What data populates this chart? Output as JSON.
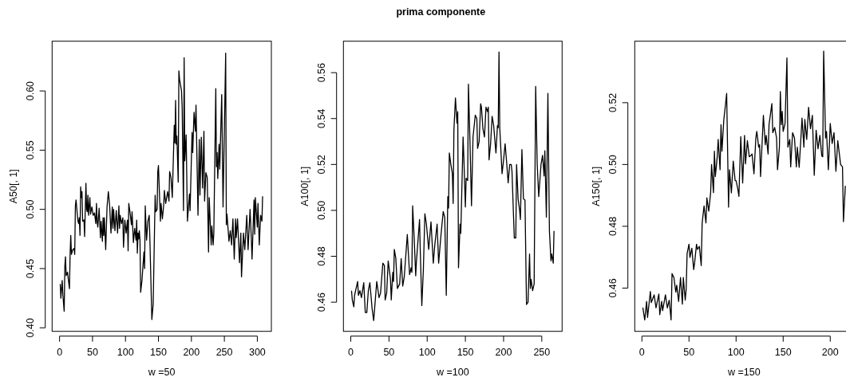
{
  "chart_data": [
    {
      "type": "line",
      "xlabel": "w =50",
      "ylabel": "A50[, 1]",
      "xlim": [
        -11.3,
        321.3
      ],
      "ylim": [
        0.397,
        0.642
      ],
      "xticks": [
        0,
        50,
        100,
        150,
        200,
        250,
        300
      ],
      "yticks": [
        {
          "value": 0.4,
          "label": "0.40"
        },
        0.45,
        {
          "value": 0.5,
          "label": "0.50"
        },
        0.55,
        {
          "value": 0.6,
          "label": "0.60"
        }
      ],
      "series": [
        {
          "color": "#000000",
          "x": [
            1,
            2,
            4,
            5,
            7,
            8,
            9,
            10,
            12,
            15,
            16,
            17,
            18,
            20,
            22,
            23,
            24,
            25,
            27,
            28,
            29,
            30,
            31,
            32,
            33,
            34,
            35,
            37,
            38,
            40,
            41,
            42,
            43,
            44,
            46,
            47,
            49,
            51,
            53,
            55,
            56,
            57,
            58,
            60,
            62,
            63,
            65,
            66,
            67,
            68,
            70,
            72,
            74,
            76,
            78,
            80,
            81,
            82,
            84,
            86,
            88,
            90,
            91,
            92,
            94,
            96,
            97,
            99,
            101,
            103,
            104,
            105,
            107,
            109,
            110,
            112,
            114,
            116,
            117,
            118,
            119,
            120,
            121,
            122,
            123,
            125,
            128,
            129,
            130,
            132,
            134,
            136,
            137,
            140,
            142,
            145,
            146,
            148,
            149,
            150,
            153,
            154,
            156,
            158,
            159,
            161,
            164,
            166,
            167,
            169,
            171,
            174,
            175,
            176,
            177,
            178,
            180,
            181,
            182,
            185,
            186,
            188,
            189,
            190,
            192,
            194,
            197,
            198,
            201,
            202,
            204,
            206,
            207,
            210,
            212,
            213,
            215,
            217,
            219,
            220,
            222,
            224,
            226,
            227,
            230,
            231,
            233,
            234,
            237,
            238,
            239,
            240,
            242,
            243,
            246,
            248,
            252,
            253,
            254,
            257,
            259,
            261,
            263,
            265,
            267,
            268,
            270,
            273,
            275,
            276,
            279,
            281,
            284,
            286,
            289,
            291,
            292,
            295,
            296,
            297,
            300,
            301,
            303,
            305,
            307,
            308
          ],
          "values": [
            0.437,
            0.425,
            0.44,
            0.428,
            0.414,
            0.452,
            0.46,
            0.444,
            0.447,
            0.433,
            0.462,
            0.478,
            0.462,
            0.466,
            0.467,
            0.462,
            0.503,
            0.508,
            0.495,
            0.49,
            0.488,
            0.493,
            0.478,
            0.519,
            0.51,
            0.515,
            0.49,
            0.491,
            0.477,
            0.522,
            0.5,
            0.498,
            0.512,
            0.495,
            0.51,
            0.496,
            0.502,
            0.495,
            0.497,
            0.488,
            0.505,
            0.49,
            0.485,
            0.501,
            0.476,
            0.49,
            0.473,
            0.493,
            0.478,
            0.493,
            0.466,
            0.502,
            0.515,
            0.503,
            0.48,
            0.502,
            0.484,
            0.5,
            0.482,
            0.499,
            0.48,
            0.503,
            0.484,
            0.495,
            0.488,
            0.493,
            0.468,
            0.491,
            0.48,
            0.491,
            0.465,
            0.505,
            0.497,
            0.487,
            0.498,
            0.472,
            0.484,
            0.474,
            0.491,
            0.463,
            0.48,
            0.475,
            0.482,
            0.474,
            0.43,
            0.44,
            0.464,
            0.45,
            0.503,
            0.474,
            0.49,
            0.495,
            0.475,
            0.407,
            0.42,
            0.512,
            0.498,
            0.5,
            0.532,
            0.537,
            0.49,
            0.505,
            0.492,
            0.504,
            0.516,
            0.505,
            0.515,
            0.507,
            0.532,
            0.527,
            0.51,
            0.571,
            0.556,
            0.592,
            0.555,
            0.562,
            0.523,
            0.617,
            0.61,
            0.6,
            0.586,
            0.499,
            0.628,
            0.541,
            0.563,
            0.49,
            0.513,
            0.499,
            0.565,
            0.548,
            0.582,
            0.566,
            0.588,
            0.495,
            0.559,
            0.512,
            0.561,
            0.518,
            0.566,
            0.507,
            0.531,
            0.527,
            0.464,
            0.51,
            0.47,
            0.486,
            0.47,
            0.48,
            0.602,
            0.536,
            0.548,
            0.526,
            0.555,
            0.534,
            0.597,
            0.502,
            0.632,
            0.487,
            0.496,
            0.473,
            0.482,
            0.47,
            0.492,
            0.458,
            0.492,
            0.476,
            0.492,
            0.455,
            0.48,
            0.443,
            0.48,
            0.466,
            0.495,
            0.466,
            0.5,
            0.474,
            0.458,
            0.508,
            0.479,
            0.51,
            0.485,
            0.505,
            0.47,
            0.495,
            0.49,
            0.511
          ]
        }
      ]
    },
    {
      "type": "line",
      "title": "prima componente",
      "xlabel": "w =100",
      "ylabel": "A100[, 1]",
      "xlim": [
        -9.6,
        276.6
      ],
      "ylim": [
        0.4473,
        0.5737
      ],
      "xticks": [
        0,
        50,
        100,
        150,
        200,
        250
      ],
      "yticks": [
        0.46,
        0.48,
        {
          "value": 0.5,
          "label": "0.50"
        },
        0.52,
        0.54,
        0.56
      ],
      "series": [
        {
          "color": "#000000",
          "x": [
            1,
            2,
            4,
            5,
            9,
            10,
            12,
            14,
            17,
            19,
            21,
            23,
            25,
            28,
            30,
            34,
            37,
            39,
            42,
            44,
            45,
            47,
            49,
            52,
            53,
            55,
            56,
            57,
            59,
            61,
            64,
            66,
            68,
            70,
            74,
            77,
            79,
            80,
            81,
            83,
            85,
            86,
            90,
            91,
            93,
            95,
            97,
            99,
            102,
            105,
            108,
            110,
            113,
            115,
            118,
            121,
            123,
            125,
            127,
            128,
            129,
            131,
            133,
            134,
            135,
            137,
            139,
            140,
            141,
            143,
            144,
            147,
            148,
            150,
            151,
            153,
            154,
            156,
            158,
            160,
            163,
            165,
            166,
            168,
            170,
            171,
            173,
            175,
            177,
            179,
            180,
            181,
            183,
            185,
            187,
            190,
            192,
            193,
            194,
            195,
            198,
            200,
            202,
            204,
            206,
            208,
            210,
            211,
            214,
            216,
            217,
            219,
            221,
            222,
            224,
            226,
            228,
            230,
            232,
            234,
            235,
            236,
            238,
            240,
            242,
            244,
            246,
            249,
            251,
            253,
            254,
            256,
            258,
            260,
            262,
            263,
            265,
            266
          ],
          "values": [
            0.465,
            0.461,
            0.458,
            0.463,
            0.469,
            0.463,
            0.465,
            0.462,
            0.4685,
            0.4555,
            0.4555,
            0.465,
            0.4685,
            0.457,
            0.452,
            0.469,
            0.462,
            0.464,
            0.477,
            0.476,
            0.461,
            0.464,
            0.478,
            0.47,
            0.461,
            0.473,
            0.469,
            0.483,
            0.479,
            0.466,
            0.468,
            0.479,
            0.467,
            0.471,
            0.4895,
            0.472,
            0.475,
            0.473,
            0.502,
            0.488,
            0.4715,
            0.478,
            0.496,
            0.482,
            0.4585,
            0.474,
            0.4985,
            0.494,
            0.483,
            0.495,
            0.477,
            0.485,
            0.494,
            0.477,
            0.489,
            0.4995,
            0.497,
            0.463,
            0.506,
            0.501,
            0.525,
            0.52,
            0.516,
            0.503,
            0.535,
            0.549,
            0.538,
            0.543,
            0.475,
            0.494,
            0.49,
            0.532,
            0.523,
            0.5015,
            0.514,
            0.513,
            0.555,
            0.53,
            0.502,
            0.532,
            0.5415,
            0.54,
            0.527,
            0.53,
            0.5465,
            0.545,
            0.5355,
            0.532,
            0.545,
            0.543,
            0.545,
            0.522,
            0.529,
            0.541,
            0.537,
            0.525,
            0.537,
            0.536,
            0.569,
            0.536,
            0.516,
            0.522,
            0.529,
            0.521,
            0.512,
            0.52,
            0.52,
            0.517,
            0.488,
            0.488,
            0.52,
            0.505,
            0.5,
            0.496,
            0.5265,
            0.505,
            0.5045,
            0.459,
            0.46,
            0.481,
            0.466,
            0.47,
            0.465,
            0.468,
            0.554,
            0.52,
            0.506,
            0.52,
            0.524,
            0.515,
            0.526,
            0.497,
            0.551,
            0.491,
            0.478,
            0.481,
            0.477,
            0.491
          ]
        }
      ]
    },
    {
      "type": "line",
      "xlabel": "w =150",
      "ylabel": "A150[, 1]",
      "xlim": [
        -7.6,
        224.6
      ],
      "ylim": [
        0.446,
        0.5399
      ],
      "xticks": [
        0,
        50,
        100,
        150,
        200
      ],
      "yticks": [
        0.46,
        0.48,
        {
          "value": 0.5,
          "label": "0.50"
        },
        0.52
      ],
      "series": [
        {
          "color": "#000000",
          "x": [
            1,
            3,
            5,
            6,
            9,
            10,
            13,
            15,
            18,
            19,
            21,
            22,
            25,
            27,
            29,
            31,
            32,
            34,
            36,
            37,
            39,
            41,
            43,
            44,
            46,
            47,
            48,
            50,
            51,
            53,
            55,
            56,
            58,
            59,
            61,
            63,
            64,
            66,
            68,
            69,
            71,
            73,
            74,
            76,
            77,
            78,
            80,
            81,
            83,
            84,
            85,
            87,
            88,
            90,
            92,
            93,
            95,
            97,
            99,
            100,
            102,
            103,
            105,
            107,
            109,
            110,
            112,
            114,
            116,
            117,
            119,
            121,
            122,
            124,
            125,
            126,
            129,
            131,
            132,
            134,
            135,
            138,
            139,
            141,
            143,
            144,
            146,
            147,
            148,
            149,
            150,
            152,
            154,
            155,
            157,
            158,
            160,
            162,
            164,
            165,
            167,
            169,
            170,
            172,
            173,
            175,
            177,
            179,
            181,
            183,
            185,
            187,
            189,
            191,
            192,
            193,
            195,
            196,
            198,
            200,
            202,
            204,
            206,
            208,
            211,
            213,
            214,
            216
          ],
          "values": [
            0.4537,
            0.4497,
            0.4557,
            0.4505,
            0.4589,
            0.4553,
            0.4578,
            0.4536,
            0.4581,
            0.4514,
            0.4557,
            0.4527,
            0.4578,
            0.4536,
            0.4561,
            0.4497,
            0.4647,
            0.4634,
            0.4587,
            0.4609,
            0.4557,
            0.4634,
            0.4548,
            0.4634,
            0.4561,
            0.4596,
            0.4712,
            0.4742,
            0.4699,
            0.4729,
            0.466,
            0.4682,
            0.4742,
            0.4725,
            0.4735,
            0.4673,
            0.4811,
            0.4866,
            0.4811,
            0.4892,
            0.4849,
            0.4909,
            0.5,
            0.4909,
            0.5043,
            0.4961,
            0.5025,
            0.5081,
            0.4983,
            0.5129,
            0.5043,
            0.5146,
            0.5172,
            0.523,
            0.4862,
            0.4983,
            0.4908,
            0.5011,
            0.4948,
            0.4948,
            0.4918,
            0.4897,
            0.509,
            0.494,
            0.5094,
            0.5002,
            0.5077,
            0.5025,
            0.503,
            0.5034,
            0.497,
            0.5086,
            0.5107,
            0.5056,
            0.5064,
            0.4961,
            0.5159,
            0.5064,
            0.5094,
            0.5034,
            0.5129,
            0.5197,
            0.5103,
            0.512,
            0.5086,
            0.4983,
            0.5056,
            0.5236,
            0.5129,
            0.5172,
            0.5107,
            0.5133,
            0.5345,
            0.5056,
            0.5081,
            0.4992,
            0.5103,
            0.5086,
            0.4992,
            0.5056,
            0.4991,
            0.5094,
            0.515,
            0.5056,
            0.5146,
            0.5081,
            0.5185,
            0.5116,
            0.5159,
            0.4965,
            0.5111,
            0.5051,
            0.5094,
            0.5028,
            0.5025,
            0.5367,
            0.5086,
            0.5107,
            0.4983,
            0.5133,
            0.5068,
            0.5103,
            0.4978,
            0.5077,
            0.5,
            0.4992,
            0.4815,
            0.4931
          ]
        }
      ]
    }
  ]
}
